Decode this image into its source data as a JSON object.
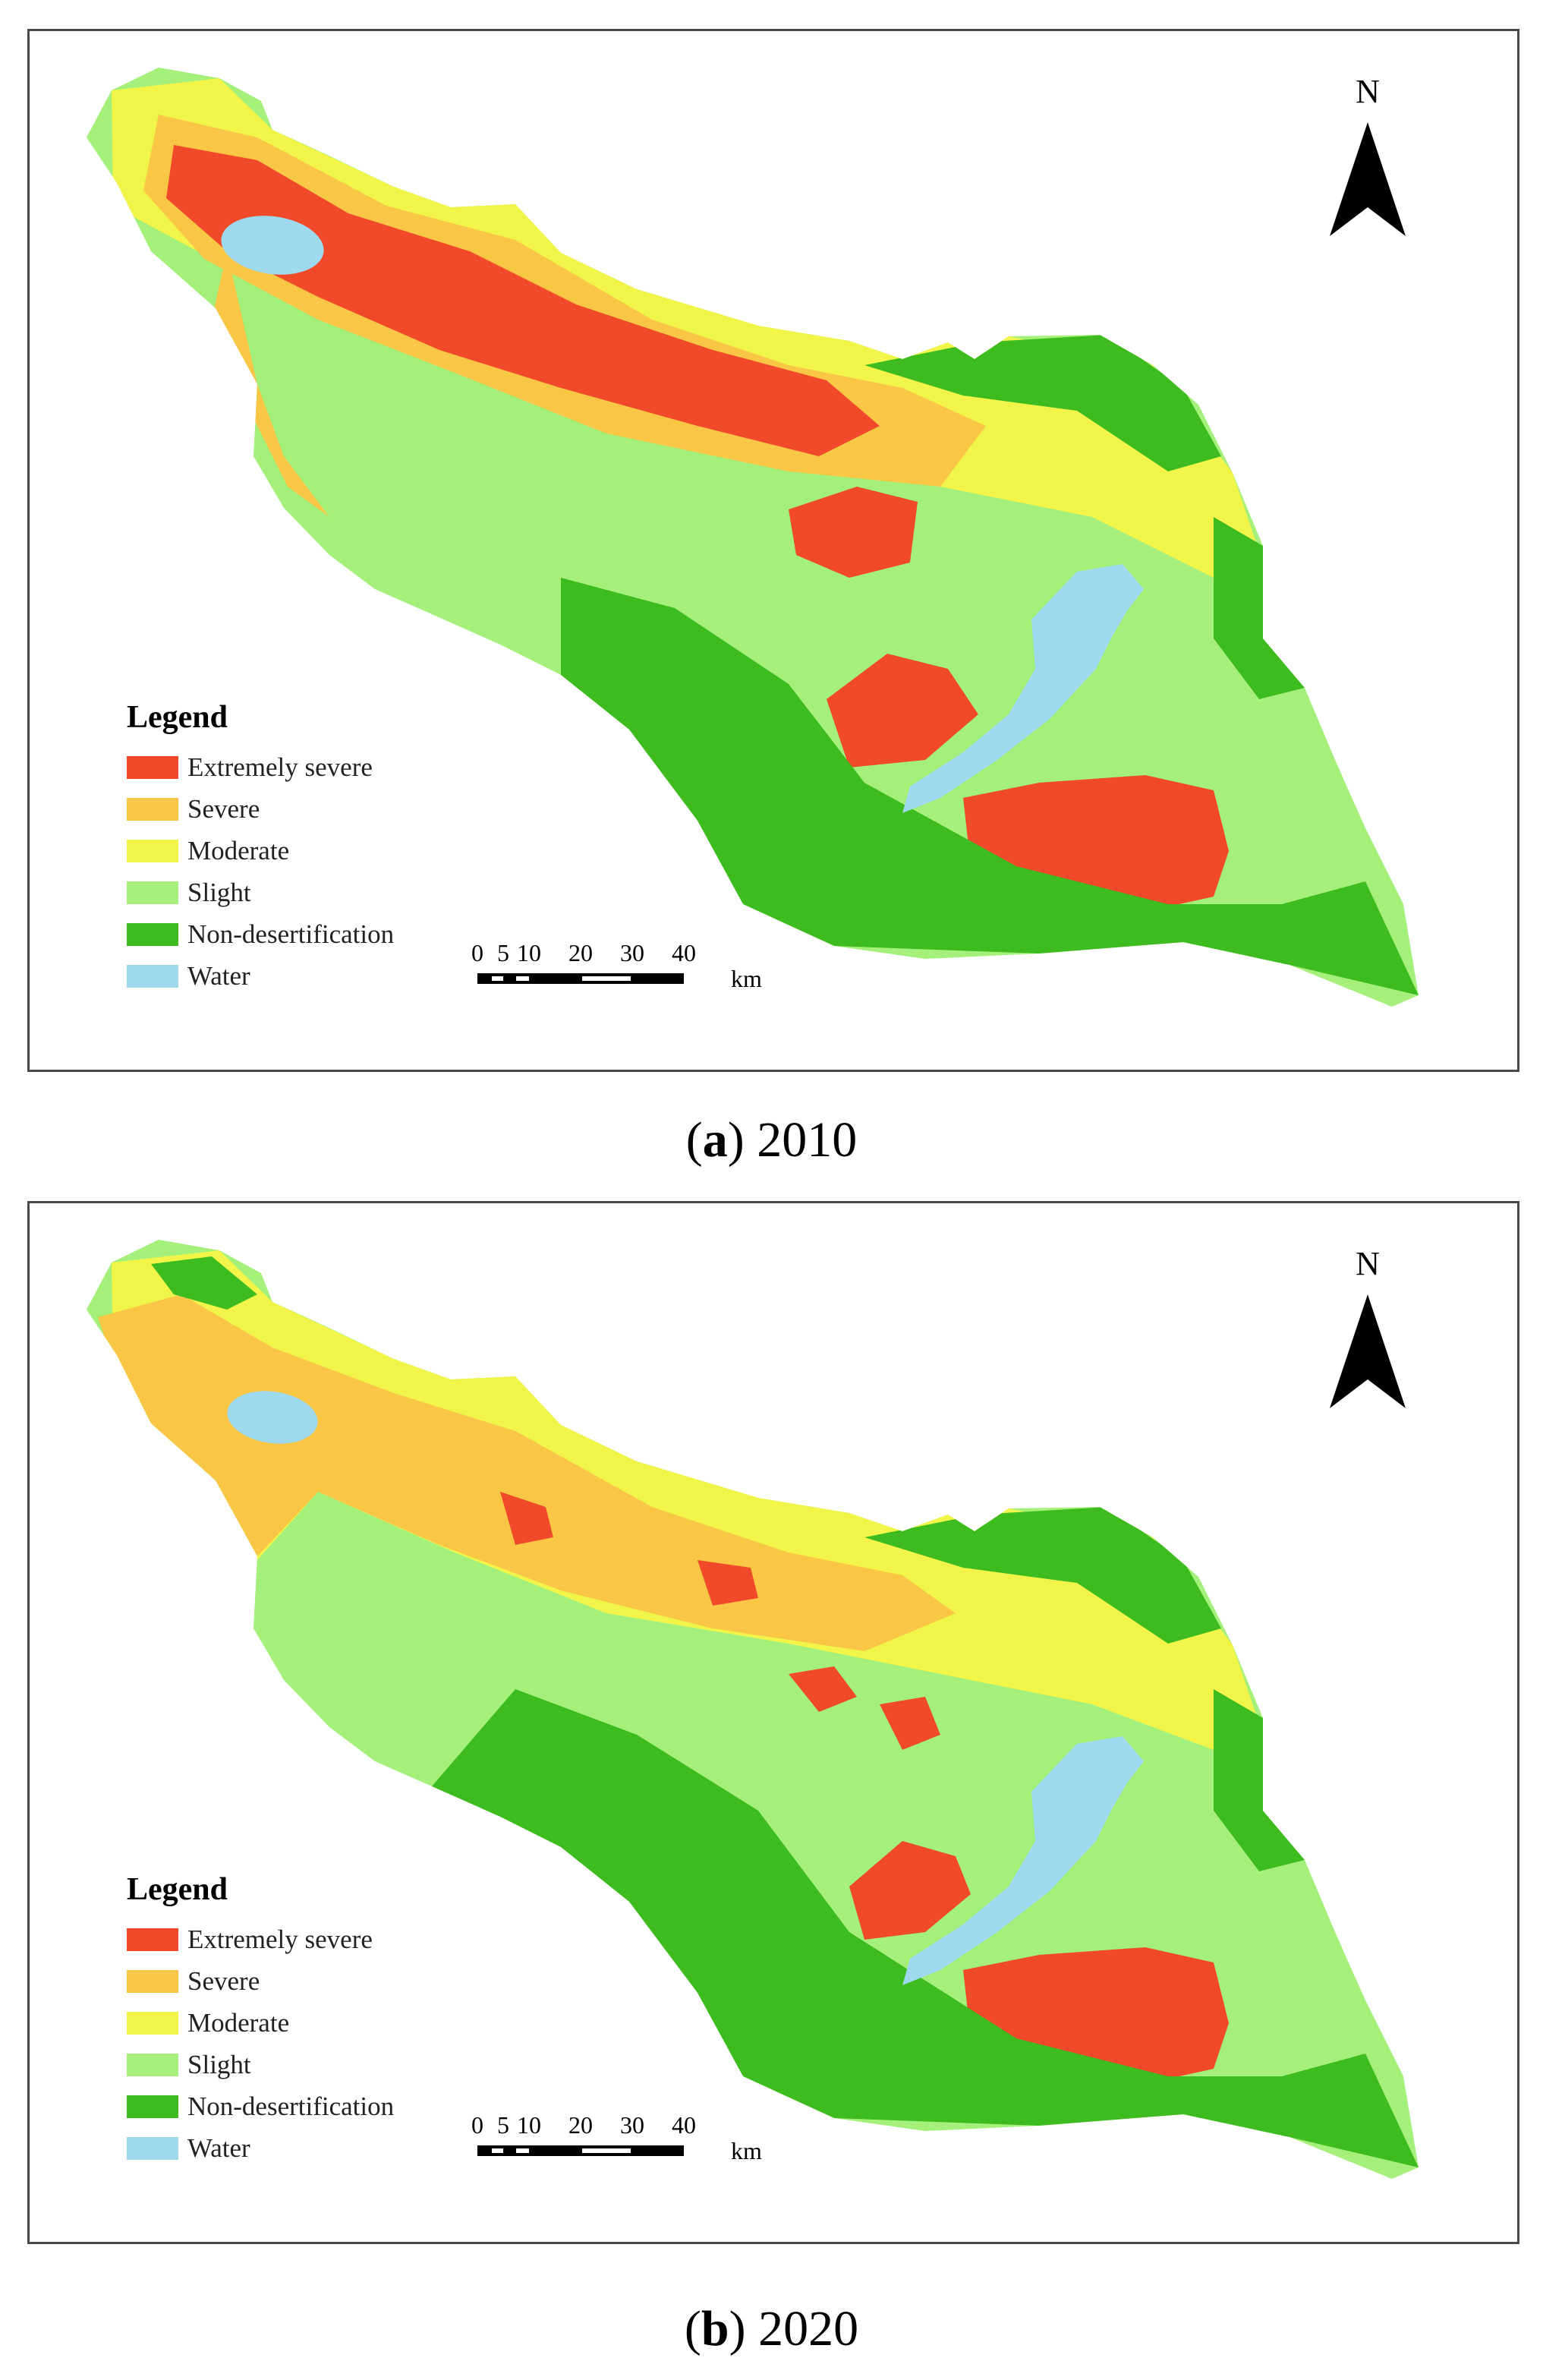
{
  "panels": [
    {
      "letter": "a",
      "year": "2010",
      "north_label": "N",
      "legend": {
        "title": "Legend",
        "items": [
          {
            "label": "Extremely severe",
            "color": "#f04a2a"
          },
          {
            "label": "Severe",
            "color": "#f9c646"
          },
          {
            "label": "Moderate",
            "color": "#f1f549"
          },
          {
            "label": "Slight",
            "color": "#a4f07b"
          },
          {
            "label": "Non-desertification",
            "color": "#3dbb1f"
          },
          {
            "label": "Water",
            "color": "#9fd9ee"
          }
        ]
      },
      "scale": {
        "ticks": [
          "0",
          "5",
          "10",
          "20",
          "30",
          "40"
        ],
        "unit": "km"
      }
    },
    {
      "letter": "b",
      "year": "2020",
      "north_label": "N",
      "legend": {
        "title": "Legend",
        "items": [
          {
            "label": "Extremely severe",
            "color": "#f04a2a"
          },
          {
            "label": "Severe",
            "color": "#f9c646"
          },
          {
            "label": "Moderate",
            "color": "#f1f549"
          },
          {
            "label": "Slight",
            "color": "#a4f07b"
          },
          {
            "label": "Non-desertification",
            "color": "#3dbb1f"
          },
          {
            "label": "Water",
            "color": "#9fd9ee"
          }
        ]
      },
      "scale": {
        "ticks": [
          "0",
          "5",
          "10",
          "20",
          "30",
          "40"
        ],
        "unit": "km"
      }
    }
  ]
}
